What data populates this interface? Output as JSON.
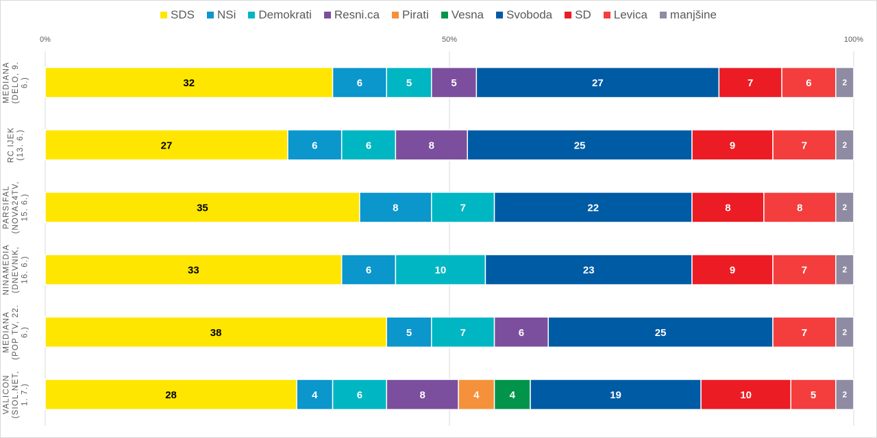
{
  "chart_data": {
    "type": "bar",
    "orientation": "horizontal",
    "stacked": true,
    "xlim": [
      0,
      100
    ],
    "x_tick_labels": [
      "0%",
      "50%",
      "100%"
    ],
    "grid": true,
    "legend_position": "top",
    "categories": [
      [
        "MEDIANA",
        "(DELO, 9.",
        "6.)"
      ],
      [
        "RC IJEK",
        "(13. 6.)"
      ],
      [
        "PARSIFAL",
        "(NOVA24TV,",
        "15. 6.)"
      ],
      [
        "NINAMEDIA",
        "(DNEVNIK,",
        "16. 6.)"
      ],
      [
        "MEDIANA",
        "(POP TV, 22.",
        "6.)"
      ],
      [
        "VALICON",
        "(SIOL.NET,",
        "1. 7.)"
      ]
    ],
    "series": [
      {
        "name": "SDS",
        "color": "#FFE600",
        "label_color": "#000000",
        "values": [
          32,
          27,
          35,
          33,
          38,
          28
        ]
      },
      {
        "name": "NSi",
        "color": "#0B96CC",
        "label_color": "#ffffff",
        "values": [
          6,
          6,
          8,
          6,
          5,
          4
        ]
      },
      {
        "name": "Demokrati",
        "color": "#00B6C3",
        "label_color": "#ffffff",
        "values": [
          5,
          6,
          7,
          10,
          7,
          6
        ]
      },
      {
        "name": "Resni.ca",
        "color": "#7B4F9D",
        "label_color": "#ffffff",
        "values": [
          5,
          8,
          0,
          0,
          6,
          8
        ]
      },
      {
        "name": "Pirati",
        "color": "#F5913A",
        "label_color": "#ffffff",
        "values": [
          0,
          0,
          0,
          0,
          0,
          4
        ]
      },
      {
        "name": "Vesna",
        "color": "#03944B",
        "label_color": "#ffffff",
        "values": [
          0,
          0,
          0,
          0,
          0,
          4
        ]
      },
      {
        "name": "Svoboda",
        "color": "#005BA5",
        "label_color": "#ffffff",
        "values": [
          27,
          25,
          22,
          23,
          25,
          19
        ]
      },
      {
        "name": "SD",
        "color": "#EC1C24",
        "label_color": "#ffffff",
        "values": [
          7,
          9,
          8,
          9,
          0,
          10
        ]
      },
      {
        "name": "Levica",
        "color": "#F43E3E",
        "label_color": "#ffffff",
        "values": [
          6,
          7,
          8,
          7,
          7,
          5
        ]
      },
      {
        "name": "manjšine",
        "color": "#8E8BA3",
        "label_color": "#ffffff",
        "values": [
          2,
          2,
          2,
          2,
          2,
          2
        ]
      }
    ]
  }
}
